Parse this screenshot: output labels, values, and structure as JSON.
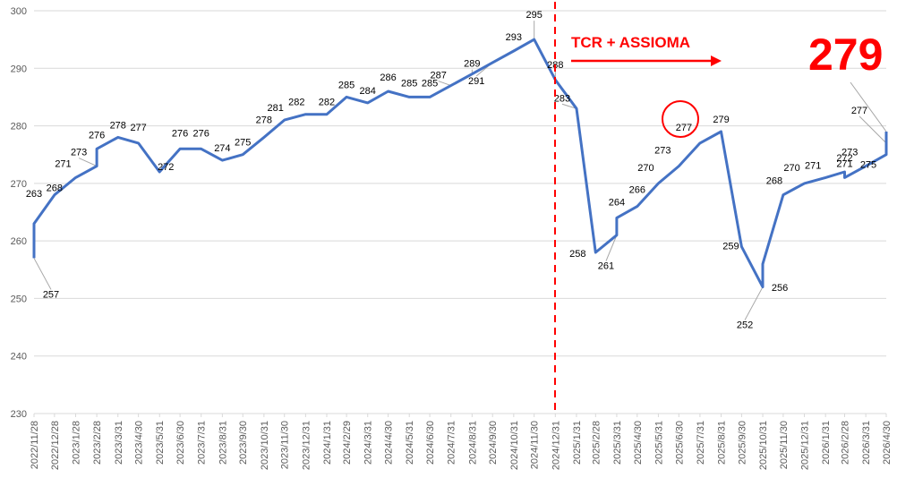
{
  "chart_data": {
    "type": "line",
    "ylim": [
      230,
      300
    ],
    "y_ticks": [
      "230",
      "240",
      "250",
      "260",
      "270",
      "280",
      "290",
      "300"
    ],
    "grid": "horizontal",
    "x_tick_labels": [
      "2022/11/28",
      "2022/12/28",
      "2023/1/28",
      "2023/2/28",
      "2023/3/31",
      "2023/4/30",
      "2023/5/31",
      "2023/6/30",
      "2023/7/31",
      "2023/8/31",
      "2023/9/30",
      "2023/10/31",
      "2023/11/30",
      "2023/12/31",
      "2024/1/31",
      "2024/2/29",
      "2024/3/31",
      "2024/4/30",
      "2024/5/31",
      "2024/6/30",
      "2024/7/31",
      "2024/8/31",
      "2024/9/30",
      "2024/10/31",
      "2024/11/30",
      "2024/12/31",
      "2025/1/31",
      "2025/2/28",
      "2025/3/31",
      "2025/4/30",
      "2025/5/31",
      "2025/6/30",
      "2025/7/31",
      "2025/8/31",
      "2025/9/30",
      "2025/10/31",
      "2025/11/30",
      "2025/12/31",
      "2026/1/31",
      "2026/2/28",
      "2026/3/31",
      "2026/4/30"
    ],
    "series": [
      {
        "color": "#4472c4",
        "points": [
          [
            "2022/11/28",
            257
          ],
          [
            "2022/11/28",
            263
          ],
          [
            "2022/12/28",
            268
          ],
          [
            "2023/1/28",
            271
          ],
          [
            "2023/2/28",
            273
          ],
          [
            "2023/2/28",
            276
          ],
          [
            "2023/3/31",
            278
          ],
          [
            "2023/4/30",
            277
          ],
          [
            "2023/5/31",
            272
          ],
          [
            "2023/6/30",
            276
          ],
          [
            "2023/7/31",
            276
          ],
          [
            "2023/8/31",
            274
          ],
          [
            "2023/9/30",
            275
          ],
          [
            "2023/10/31",
            278
          ],
          [
            "2023/11/30",
            281
          ],
          [
            "2023/12/31",
            282
          ],
          [
            "2024/1/31",
            282
          ],
          [
            "2024/2/29",
            285
          ],
          [
            "2024/3/31",
            284
          ],
          [
            "2024/4/30",
            286
          ],
          [
            "2024/5/31",
            285
          ],
          [
            "2024/6/30",
            285
          ],
          [
            "2024/7/31",
            287
          ],
          [
            "2024/8/31",
            289
          ],
          [
            "2024/9/30",
            291
          ],
          [
            "2024/10/31",
            293
          ],
          [
            "2024/11/30",
            295
          ],
          [
            "2024/12/31",
            288
          ],
          [
            "2025/1/31",
            283
          ],
          [
            "2025/2/28",
            258
          ],
          [
            "2025/3/31",
            261
          ],
          [
            "2025/3/31",
            264
          ],
          [
            "2025/4/30",
            266
          ],
          [
            "2025/5/31",
            270
          ],
          [
            "2025/6/30",
            273
          ],
          [
            "2025/7/31",
            277
          ],
          [
            "2025/8/31",
            279
          ],
          [
            "2025/9/30",
            259
          ],
          [
            "2025/10/31",
            252
          ],
          [
            "2025/10/31",
            256
          ],
          [
            "2025/11/30",
            268
          ],
          [
            "2025/12/31",
            270
          ],
          [
            "2026/1/31",
            271
          ],
          [
            "2026/2/28",
            272
          ],
          [
            "2026/2/28",
            271
          ],
          [
            "2026/3/31",
            273
          ],
          [
            "2026/4/30",
            275
          ],
          [
            "2026/4/30",
            277
          ],
          [
            "2026/4/30",
            279
          ]
        ],
        "labels": [
          "257",
          "263",
          "268",
          "271",
          "273",
          "276",
          "278",
          "277",
          "272",
          "276",
          "276",
          "274",
          "275",
          "278",
          "281",
          "282",
          "282",
          "285",
          "284",
          "286",
          "285",
          "285",
          "287",
          "289",
          "291",
          "293",
          "295",
          "288",
          "283",
          "258",
          "261",
          "264",
          "266",
          "270",
          "273",
          "277",
          "279",
          "259",
          "252",
          "256",
          "268",
          "270",
          "271",
          "272",
          "271",
          "273",
          "275",
          "277",
          ""
        ]
      }
    ],
    "annotations": {
      "event_text": "TCR + ASSIOMA",
      "big_value": "279",
      "event_line_color": "#ff0000"
    }
  }
}
